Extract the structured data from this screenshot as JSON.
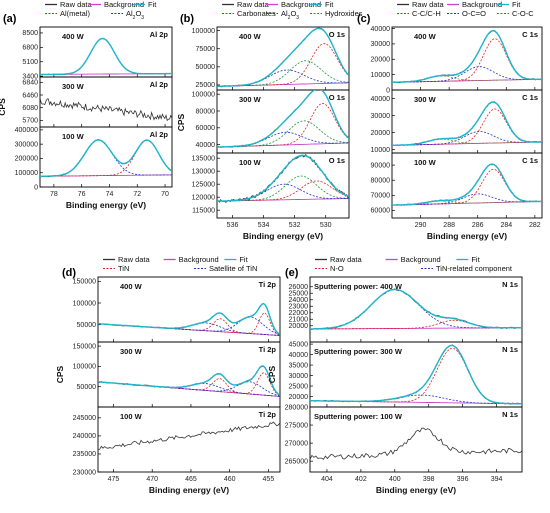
{
  "figure": {
    "panel_labels": [
      "(a)",
      "(b)",
      "(c)",
      "(d)",
      "(e)"
    ],
    "legend_common": [
      "Raw data",
      "Background",
      "Fit"
    ],
    "colors": {
      "raw": "#333333",
      "background": "#cc44cc",
      "fit": "#1fb5c9",
      "red": "#e02020",
      "blue": "#2233cc",
      "green": "#1a9a3a",
      "olive": "#7a8a20"
    }
  },
  "chart_data": [
    {
      "type": "line",
      "panel": "(a)",
      "legend": [
        "Raw data",
        "Background",
        "Fit",
        "Al(metal)",
        "Al2O3"
      ],
      "xlabel": "Binding energy (eV)",
      "ylabel": "CPS",
      "xlim": [
        79,
        69.5
      ],
      "xticks": [
        78,
        76,
        74,
        72,
        70
      ],
      "subplots": [
        {
          "power": "400 W",
          "peak_label": "Al 2p",
          "ylim": [
            3300,
            9200
          ],
          "yticks": [
            3400,
            5100,
            6800,
            8500
          ],
          "peaks": [
            {
              "center": 74.5,
              "height": 4200,
              "width": 0.85,
              "color": "blue"
            }
          ],
          "baseline": [
            3600,
            3700
          ],
          "noise": 40
        },
        {
          "power": "300 W",
          "peak_label": "Al 2p",
          "ylim": [
            5500,
            7000
          ],
          "yticks": [
            5700,
            6080,
            6460,
            6840
          ],
          "linear_from": 6300,
          "linear_to": 5750,
          "noise": 110
        },
        {
          "power": "100 W",
          "peak_label": "Al 2p",
          "ylim": [
            0,
            420000
          ],
          "yticks": [
            0,
            100000,
            200000,
            300000,
            400000
          ],
          "peaks": [
            {
              "center": 74.8,
              "height": 250000,
              "width": 1.0,
              "color": "blue"
            },
            {
              "center": 71.3,
              "height": 245000,
              "width": 0.85,
              "color": "red"
            }
          ],
          "baseline": [
            75000,
            85000
          ],
          "noise": 4000
        }
      ]
    },
    {
      "type": "line",
      "panel": "(b)",
      "legend": [
        "Raw data",
        "Background",
        "Fit",
        "Carbonates",
        "Al2O3",
        "Hydroxides"
      ],
      "xlabel": "Binding energy (eV)",
      "ylabel": "CPS",
      "xlim": [
        537,
        528.5
      ],
      "xticks": [
        536,
        534,
        532,
        530
      ],
      "subplots": [
        {
          "power": "400 W",
          "peak_label": "O 1s",
          "ylim": [
            18000,
            105000
          ],
          "yticks": [
            25000,
            50000,
            75000,
            100000
          ],
          "peaks": [
            {
              "center": 530.1,
              "height": 55000,
              "width": 0.85,
              "color": "red"
            },
            {
              "center": 531.3,
              "height": 32000,
              "width": 1.0,
              "color": "green"
            },
            {
              "center": 532.5,
              "height": 20000,
              "width": 1.1,
              "color": "blue"
            }
          ],
          "baseline": [
            23000,
            28000
          ],
          "noise": 800
        },
        {
          "power": "300 W",
          "peak_label": "O 1s",
          "ylim": [
            30000,
            105000
          ],
          "yticks": [
            40000,
            60000,
            80000,
            100000
          ],
          "peaks": [
            {
              "center": 530.2,
              "height": 48000,
              "width": 0.8,
              "color": "red"
            },
            {
              "center": 531.4,
              "height": 28000,
              "width": 1.0,
              "color": "green"
            },
            {
              "center": 532.6,
              "height": 15000,
              "width": 1.1,
              "color": "blue"
            }
          ],
          "baseline": [
            37000,
            42000
          ],
          "noise": 700
        },
        {
          "power": "100 W",
          "peak_label": "O 1s",
          "ylim": [
            112000,
            137000
          ],
          "yticks": [
            115000,
            120000,
            125000,
            130000,
            135000
          ],
          "peaks": [
            {
              "center": 530.6,
              "height": 7000,
              "width": 1.0,
              "color": "red"
            },
            {
              "center": 531.6,
              "height": 9000,
              "width": 1.0,
              "color": "green"
            },
            {
              "center": 532.7,
              "height": 6000,
              "width": 1.1,
              "color": "blue"
            }
          ],
          "baseline": [
            118500,
            119500
          ],
          "noise": 600
        }
      ]
    },
    {
      "type": "line",
      "panel": "(c)",
      "legend": [
        "Raw data",
        "Background",
        "Fit",
        "C-C/C-H",
        "O-C=O",
        "C-O-C"
      ],
      "xlabel": "Binding energy (eV)",
      "ylabel": "",
      "xlim": [
        292,
        281.5
      ],
      "xticks": [
        290,
        288,
        286,
        284,
        282
      ],
      "subplots": [
        {
          "power": "400 W",
          "peak_label": "C 1s",
          "ylim": [
            0,
            41000
          ],
          "yticks": [
            0,
            10000,
            20000,
            30000,
            40000
          ],
          "peaks": [
            {
              "center": 284.8,
              "height": 27000,
              "width": 0.8,
              "color": "red"
            },
            {
              "center": 285.9,
              "height": 9000,
              "width": 1.0,
              "color": "blue"
            },
            {
              "center": 288.6,
              "height": 3500,
              "width": 0.9,
              "color": "olive"
            }
          ],
          "baseline": [
            5000,
            7000
          ],
          "noise": 400
        },
        {
          "power": "300 W",
          "peak_label": "C 1s",
          "ylim": [
            8000,
            45000
          ],
          "yticks": [
            10000,
            20000,
            30000,
            40000
          ],
          "peaks": [
            {
              "center": 284.8,
              "height": 20000,
              "width": 0.8,
              "color": "red"
            },
            {
              "center": 285.9,
              "height": 7000,
              "width": 1.0,
              "color": "blue"
            },
            {
              "center": 288.6,
              "height": 3000,
              "width": 0.9,
              "color": "olive"
            }
          ],
          "baseline": [
            12500,
            14500
          ],
          "noise": 350
        },
        {
          "power": "100 W",
          "peak_label": "C 1s",
          "ylim": [
            55000,
            98000
          ],
          "yticks": [
            60000,
            70000,
            80000,
            90000
          ],
          "peaks": [
            {
              "center": 284.9,
              "height": 22000,
              "width": 0.8,
              "color": "red"
            },
            {
              "center": 286.0,
              "height": 6000,
              "width": 1.0,
              "color": "blue"
            },
            {
              "center": 288.7,
              "height": 2000,
              "width": 0.9,
              "color": "olive"
            }
          ],
          "baseline": [
            63500,
            66000
          ],
          "noise": 400
        }
      ]
    },
    {
      "type": "line",
      "panel": "(d)",
      "legend": [
        "Raw data",
        "Background",
        "Fit",
        "TiN",
        "Satellite of TiN"
      ],
      "xlabel": "Binding energy (eV)",
      "ylabel": "CPS",
      "xlim": [
        477,
        453.5
      ],
      "xticks": [
        475,
        470,
        465,
        460,
        455
      ],
      "subplots": [
        {
          "power": "400 W",
          "peak_label": "Ti 2p",
          "ylim": [
            10000,
            160000
          ],
          "yticks": [
            50000,
            100000,
            150000
          ],
          "peaks": [
            {
              "center": 455.5,
              "height": 50000,
              "width": 0.7,
              "color": "red"
            },
            {
              "center": 461.2,
              "height": 30000,
              "width": 0.9,
              "color": "red"
            },
            {
              "center": 457.3,
              "height": 38000,
              "width": 1.6,
              "color": "blue"
            },
            {
              "center": 463.0,
              "height": 18000,
              "width": 1.8,
              "color": "blue"
            }
          ],
          "baseline": [
            52000,
            25000
          ],
          "noise": 1200
        },
        {
          "power": "300 W",
          "peak_label": "Ti 2p",
          "ylim": [
            0,
            160000
          ],
          "yticks": [
            50000,
            100000,
            150000
          ],
          "peaks": [
            {
              "center": 455.6,
              "height": 55000,
              "width": 0.8,
              "color": "red"
            },
            {
              "center": 461.3,
              "height": 32000,
              "width": 0.9,
              "color": "red"
            },
            {
              "center": 457.4,
              "height": 30000,
              "width": 1.6,
              "color": "blue"
            },
            {
              "center": 463.1,
              "height": 17000,
              "width": 1.8,
              "color": "blue"
            }
          ],
          "baseline": [
            62000,
            26000
          ],
          "noise": 1500
        },
        {
          "power": "100 W",
          "peak_label": "Ti 2p",
          "ylim": [
            230000,
            248000
          ],
          "yticks": [
            230000,
            235000,
            240000,
            245000
          ],
          "linear_from": 236500,
          "linear_to": 243500,
          "noise": 600
        }
      ]
    },
    {
      "type": "line",
      "panel": "(e)",
      "legend": [
        "Raw data",
        "Background",
        "Fit",
        "N-O",
        "TiN-related component"
      ],
      "xlabel": "Binding energy (eV)",
      "ylabel": "CPS",
      "xlim": [
        405,
        392.5
      ],
      "xticks": [
        404,
        402,
        400,
        398,
        396,
        394
      ],
      "subplots": [
        {
          "power": "Sputtering power: 400 W",
          "peak_label": "N 1s",
          "ylim": [
            17500,
            27500
          ],
          "yticks": [
            20000,
            21000,
            22000,
            23000,
            24000,
            25000,
            26000
          ],
          "peaks": [
            {
              "center": 400.0,
              "height": 6000,
              "width": 1.4,
              "color": "blue"
            },
            {
              "center": 396.5,
              "height": 1200,
              "width": 0.9,
              "color": "red"
            }
          ],
          "baseline": [
            19500,
            19700
          ],
          "noise": 120
        },
        {
          "power": "Sputtering power: 300 W",
          "peak_label": "N 1s",
          "ylim": [
            15000,
            46000
          ],
          "yticks": [
            20000,
            25000,
            30000,
            35000,
            40000,
            45000
          ],
          "peaks": [
            {
              "center": 396.6,
              "height": 26000,
              "width": 0.9,
              "color": "red"
            },
            {
              "center": 398.4,
              "height": 3500,
              "width": 1.3,
              "color": "blue"
            }
          ],
          "baseline": [
            18000,
            16500
          ],
          "noise": 300
        },
        {
          "power": "Sputtering power: 100 W",
          "peak_label": "N 1s",
          "ylim": [
            262000,
            280000
          ],
          "yticks": [
            265000,
            270000,
            275000,
            280000
          ],
          "linear_from": 266000,
          "linear_to": 268000,
          "bump": {
            "center": 398.3,
            "height": 6500,
            "width": 0.9
          },
          "noise": 700
        }
      ]
    }
  ]
}
